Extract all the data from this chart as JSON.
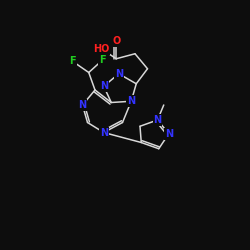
{
  "background_color": "#0d0d0d",
  "bond_color": "#d8d8d8",
  "N_color": "#3333ff",
  "O_color": "#ff2020",
  "F_color": "#20cc20",
  "font_size_atom": 7.0,
  "xlim": [
    0,
    10
  ],
  "ylim": [
    0,
    10
  ]
}
